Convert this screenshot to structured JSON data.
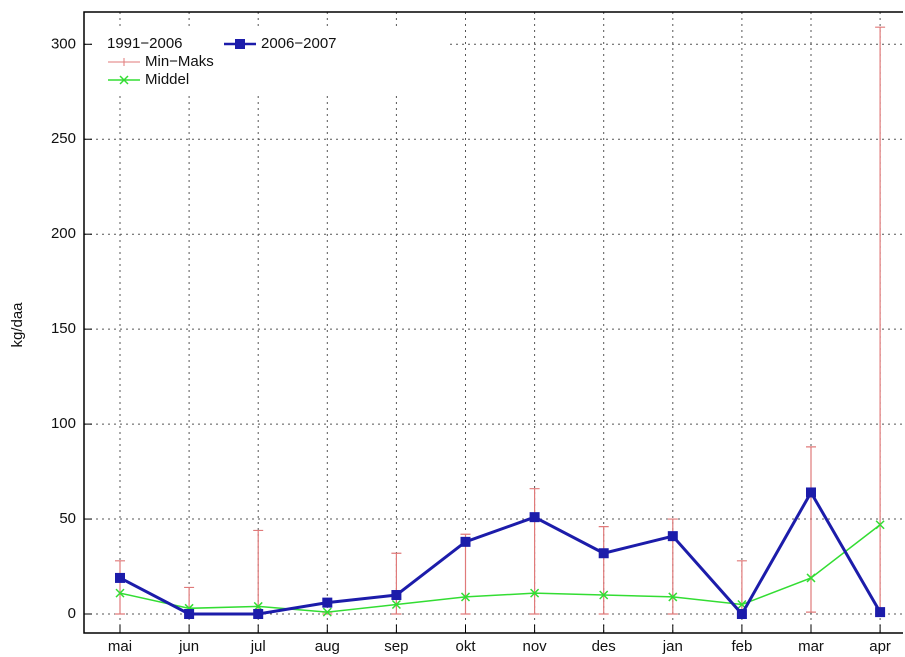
{
  "chart_data": {
    "type": "line",
    "ylabel": "kg/daa",
    "legend_title": "1991−2006",
    "categories": [
      "mai",
      "jun",
      "jul",
      "aug",
      "sep",
      "okt",
      "nov",
      "des",
      "jan",
      "feb",
      "mar",
      "apr"
    ],
    "ylim": [
      -10,
      317
    ],
    "yticks": [
      0,
      50,
      100,
      150,
      200,
      250,
      300
    ],
    "grid": true,
    "series": [
      {
        "name": "Min−Maks",
        "type": "range",
        "color": "#e07a7a",
        "min": [
          0,
          0,
          0,
          0,
          0,
          0,
          0,
          0,
          0,
          0,
          1,
          0
        ],
        "max": [
          28,
          14,
          44,
          1,
          32,
          42,
          66,
          46,
          50,
          28,
          88,
          309
        ]
      },
      {
        "name": "Middel",
        "type": "line",
        "marker": "cross",
        "color": "#33dd33",
        "values": [
          11,
          3,
          4,
          1,
          5,
          9,
          11,
          10,
          9,
          5,
          19,
          47
        ]
      },
      {
        "name": "2006−2007",
        "type": "line",
        "marker": "square",
        "color": "#1c1caa",
        "values": [
          19,
          0,
          0,
          6,
          10,
          38,
          51,
          32,
          41,
          0,
          64,
          1
        ]
      }
    ]
  }
}
